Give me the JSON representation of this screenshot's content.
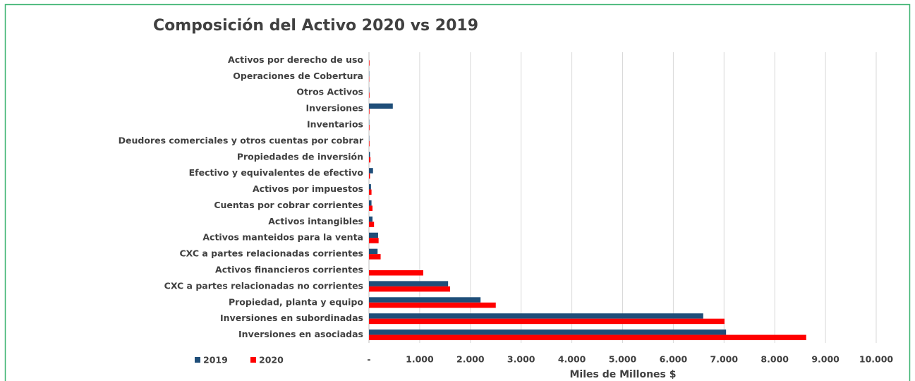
{
  "chart_data": {
    "type": "bar",
    "orientation": "horizontal",
    "title": "Composición del Activo 2020 vs 2019",
    "x_label": "Miles de Millones $",
    "categories": [
      "Activos por derecho de uso",
      "Operaciones de Cobertura",
      "Otros Activos",
      "Inversiones",
      "Inventarios",
      "Deudores comerciales y otros cuentas por cobrar",
      "Propiedades de inversión",
      "Efectivo y equivalentes de efectivo",
      "Activos por impuestos",
      "Cuentas por cobrar corrientes",
      "Activos intangibles",
      "Activos manteidos para la venta",
      "CXC a partes relacionadas corrientes",
      "Activos financieros corrientes",
      "CXC a partes relacionadas no corrientes",
      "Propiedad, planta y equipo",
      "Inversiones en subordinadas",
      "Inversiones en asociadas"
    ],
    "series": [
      {
        "name": "2019",
        "color": "#1f4e79",
        "values": [
          0,
          5,
          5,
          470,
          5,
          5,
          20,
          80,
          40,
          50,
          70,
          180,
          170,
          0,
          1560,
          2200,
          6590,
          7040
        ]
      },
      {
        "name": "2020",
        "color": "#ff0000",
        "values": [
          10,
          5,
          10,
          10,
          10,
          10,
          30,
          20,
          50,
          70,
          100,
          190,
          230,
          1070,
          1600,
          2500,
          7010,
          8620
        ]
      }
    ],
    "xlim": [
      0,
      10000
    ],
    "xticks": [
      {
        "value": 0,
        "label": "-"
      },
      {
        "value": 1000,
        "label": "1.000"
      },
      {
        "value": 2000,
        "label": "2.000"
      },
      {
        "value": 3000,
        "label": "3.000"
      },
      {
        "value": 4000,
        "label": "4.000"
      },
      {
        "value": 5000,
        "label": "5.000"
      },
      {
        "value": 6000,
        "label": "6.000"
      },
      {
        "value": 7000,
        "label": "7.000"
      },
      {
        "value": 8000,
        "label": "8.000"
      },
      {
        "value": 9000,
        "label": "9.000"
      },
      {
        "value": 10000,
        "label": "10.000"
      }
    ],
    "grid": true,
    "legend": "bottom-left"
  }
}
